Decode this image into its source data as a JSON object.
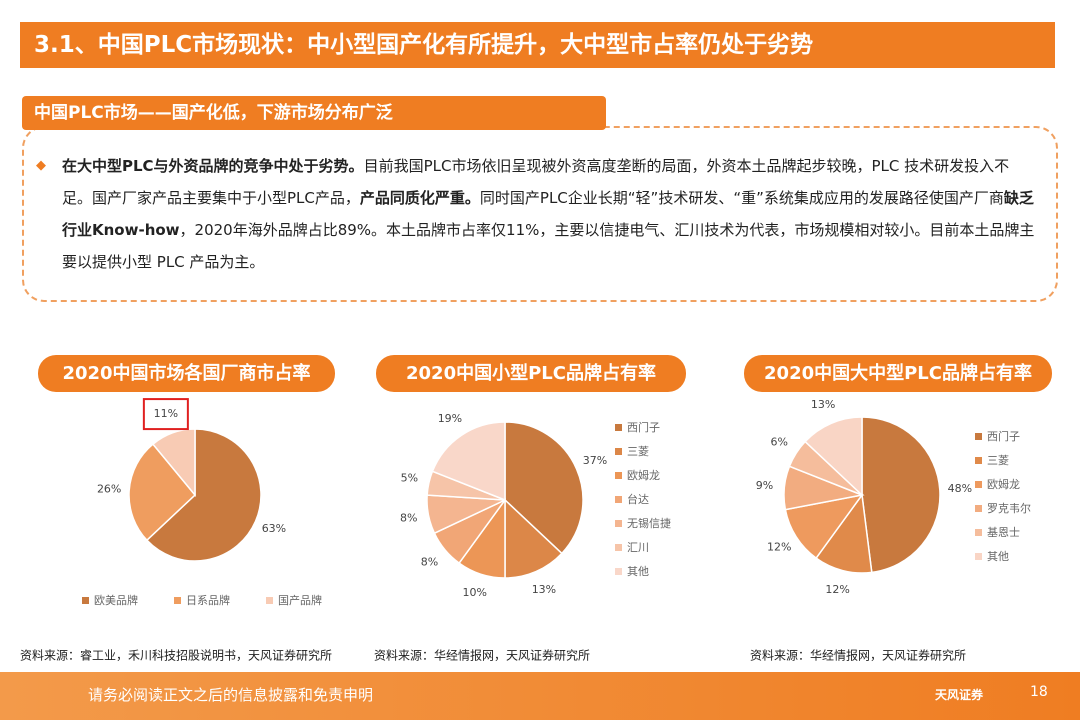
{
  "header": {
    "title": "3.1、中国PLC市场现状：中小型国产化有所提升，大中型市占率仍处于劣势"
  },
  "section": {
    "title": "中国PLC市场——国产化低，下游市场分布广泛"
  },
  "paragraph": {
    "segments": [
      {
        "text": "在大中型PLC与外资品牌的竞争中处于劣势。",
        "bold": true
      },
      {
        "text": "目前我国PLC市场依旧呈现被外资高度垄断的局面，外资本土品牌起步较晚，PLC 技术研发投入不足。国产厂家产品主要集中于小型PLC产品，",
        "bold": false
      },
      {
        "text": "产品同质化严重。",
        "bold": true
      },
      {
        "text": "同时国产PLC企业长期“轻”技术研发、“重”系统集成应用的发展路径使国产厂商",
        "bold": false
      },
      {
        "text": "缺乏行业Know-how",
        "bold": true
      },
      {
        "text": "，2020年海外品牌占比89%。本土品牌市占率仅11%，主要以信捷电气、汇川技术为代表，市场规模相对较小。目前本土品牌主要以提供小型 PLC 产品为主。",
        "bold": false
      }
    ]
  },
  "chart_data": [
    {
      "type": "pie",
      "title": "2020中国市场各国厂商市占率",
      "categories": [
        "欧美品牌",
        "日系品牌",
        "国产品牌"
      ],
      "values": [
        63,
        26,
        11
      ],
      "value_labels": [
        "63%",
        "26%",
        "11%"
      ],
      "colors": [
        "#c8793e",
        "#ef9d5f",
        "#f8cbb4"
      ],
      "legend": "bottom",
      "highlight": 2,
      "source": "资料来源：睿工业，禾川科技招股说明书，天风证券研究所"
    },
    {
      "type": "pie",
      "title": "2020中国小型PLC品牌占有率",
      "categories": [
        "西门子",
        "三菱",
        "欧姆龙",
        "台达",
        "无锡信捷",
        "汇川",
        "其他"
      ],
      "values": [
        37,
        13,
        10,
        8,
        8,
        5,
        19
      ],
      "value_labels": [
        "37%",
        "13%",
        "10%",
        "8%",
        "8%",
        "5%",
        "19%"
      ],
      "colors": [
        "#c8793e",
        "#dc8748",
        "#ec9656",
        "#f1a676",
        "#f4b590",
        "#f6c4a8",
        "#f9d7c9"
      ],
      "legend": "right",
      "source": "资料来源：华经情报网，天风证券研究所"
    },
    {
      "type": "pie",
      "title": "2020中国大中型PLC品牌占有率",
      "categories": [
        "西门子",
        "三菱",
        "欧姆龙",
        "罗克韦尔",
        "基恩士",
        "其他"
      ],
      "values": [
        48,
        12,
        12,
        9,
        6,
        13
      ],
      "value_labels": [
        "48%",
        "12%",
        "12%",
        "9%",
        "6%",
        "13%"
      ],
      "colors": [
        "#c8793e",
        "#e08a4a",
        "#ee9a5e",
        "#f2ac80",
        "#f5bd9c",
        "#f9d5c5"
      ],
      "legend": "right",
      "source": "资料来源：华经情报网，天风证券研究所"
    }
  ],
  "footer": {
    "disclaimer": "请务必阅读正文之后的信息披露和免责申明",
    "page": "18",
    "logo": "天风证券"
  }
}
